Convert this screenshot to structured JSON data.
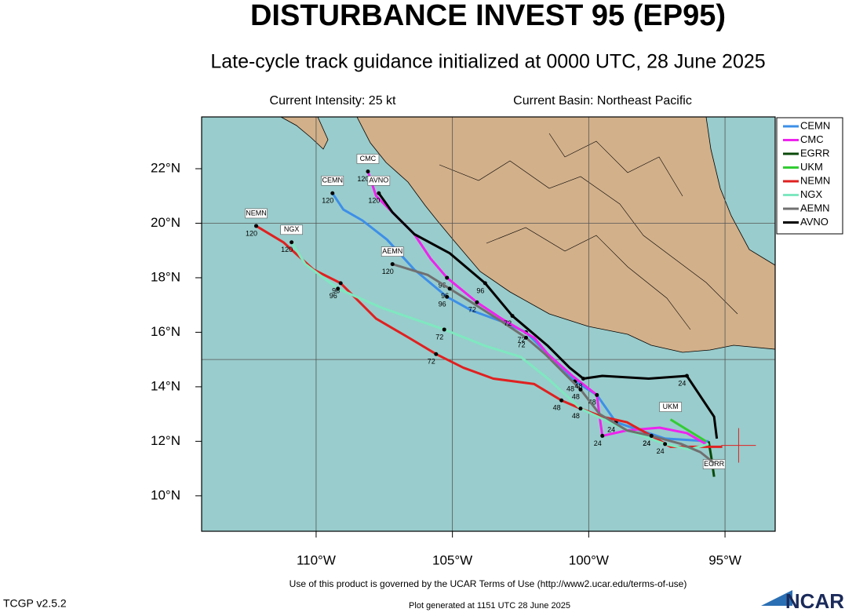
{
  "header": {
    "title": "DISTURBANCE INVEST 95 (EP95)",
    "subtitle": "Late-cycle track guidance initialized at 0000 UTC, 28 June 2025",
    "intensity": "Current Intensity: 25 kt",
    "basin": "Current Basin: Northeast Pacific"
  },
  "chart_data": {
    "type": "track",
    "xlim": [
      -114.2,
      -93.16
    ],
    "ylim": [
      8.7,
      23.9
    ],
    "xticks": [
      {
        "value": -110,
        "label": "110°W"
      },
      {
        "value": -105,
        "label": "105°W"
      },
      {
        "value": -100,
        "label": "100°W"
      },
      {
        "value": -95,
        "label": "95°W"
      }
    ],
    "yticks": [
      {
        "value": 10,
        "label": "10°N"
      },
      {
        "value": 12,
        "label": "12°N"
      },
      {
        "value": 14,
        "label": "14°N"
      },
      {
        "value": 16,
        "label": "16°N"
      },
      {
        "value": 18,
        "label": "18°N"
      },
      {
        "value": 20,
        "label": "20°N"
      },
      {
        "value": 22,
        "label": "22°N"
      }
    ],
    "grid_lon": [
      -110,
      -105,
      -100,
      -95
    ],
    "grid_lat": [
      15,
      20
    ],
    "current_position": {
      "x": -94.5,
      "y": 11.85,
      "color": "#e02020"
    },
    "series": [
      {
        "name": "CEMN",
        "color": "#3d8fe8",
        "x": [
          -95.6,
          -97.2,
          -99.0,
          -99.7,
          -100.5,
          -101.5,
          -102.3,
          -103.2,
          -104.3,
          -105.2,
          -106.4,
          -107.4,
          -108.3,
          -109.0,
          -109.4
        ],
        "values": [
          12.0,
          12.1,
          12.7,
          13.7,
          14.2,
          15.2,
          16.0,
          16.4,
          16.8,
          17.3,
          18.3,
          19.4,
          20.1,
          20.5,
          21.1
        ],
        "hours": [
          null,
          null,
          24,
          null,
          48,
          null,
          72,
          null,
          null,
          96,
          null,
          null,
          null,
          null,
          120
        ]
      },
      {
        "name": "CMC",
        "color": "#ee22ee",
        "x": [
          -95.7,
          -96.4,
          -97.4,
          -98.6,
          -99.5,
          -99.6,
          -99.7,
          -100.6,
          -101.5,
          -102.0,
          -103.2,
          -104.1,
          -105.2,
          -105.8,
          -106.4,
          -107.1,
          -107.8,
          -108.1
        ],
        "values": [
          11.9,
          12.3,
          12.5,
          12.4,
          12.2,
          12.9,
          13.7,
          14.4,
          15.2,
          15.8,
          16.5,
          17.1,
          18.0,
          18.7,
          19.6,
          20.3,
          21.0,
          21.9
        ],
        "hours": [
          null,
          null,
          null,
          null,
          24,
          null,
          48,
          null,
          null,
          null,
          null,
          72,
          96,
          null,
          null,
          null,
          null,
          120
        ]
      },
      {
        "name": "EGRR",
        "color": "#0a4a0a",
        "x": [
          -95.6,
          -95.5,
          -95.4
        ],
        "values": [
          12.0,
          11.4,
          10.7
        ],
        "hours": [
          null,
          null,
          null
        ]
      },
      {
        "name": "UKM",
        "color": "#33cc33",
        "x": [
          -95.7,
          -97.0
        ],
        "values": [
          12.0,
          12.8
        ],
        "hours": [
          null,
          null
        ]
      },
      {
        "name": "NEMN",
        "color": "#e02020",
        "x": [
          -95.1,
          -96.3,
          -97.0,
          -97.7,
          -98.6,
          -99.5,
          -100.3,
          -101.0,
          -102.0,
          -103.5,
          -104.6,
          -105.6,
          -106.6,
          -107.8,
          -109.1,
          -110.1,
          -111.2,
          -112.2
        ],
        "values": [
          11.8,
          11.8,
          11.8,
          12.2,
          12.7,
          12.9,
          13.2,
          13.5,
          14.1,
          14.3,
          14.7,
          15.2,
          15.8,
          16.5,
          17.8,
          18.3,
          19.3,
          19.9
        ],
        "hours": [
          null,
          null,
          null,
          24,
          null,
          null,
          null,
          48,
          null,
          null,
          null,
          72,
          null,
          null,
          96,
          null,
          null,
          120
        ]
      },
      {
        "name": "NGX",
        "color": "#7fe8c0",
        "x": [
          -95.6,
          -96.3,
          -97.2,
          -98.6,
          -100.3,
          -101.5,
          -102.5,
          -103.8,
          -105.3,
          -107.6,
          -109.2,
          -110.4,
          -110.9
        ],
        "values": [
          11.9,
          11.7,
          11.9,
          12.4,
          13.2,
          14.3,
          15.1,
          15.5,
          16.1,
          16.9,
          17.6,
          18.5,
          19.3
        ],
        "hours": [
          null,
          null,
          24,
          null,
          48,
          null,
          null,
          null,
          72,
          null,
          96,
          null,
          120
        ]
      },
      {
        "name": "AEMN",
        "color": "#707070",
        "x": [
          -95.4,
          -95.9,
          -96.6,
          -97.7,
          -98.6,
          -99.6,
          -100.3,
          -100.9,
          -101.6,
          -102.3,
          -103.2,
          -104.3,
          -105.1,
          -105.9,
          -107.2
        ],
        "values": [
          11.2,
          11.6,
          11.9,
          12.2,
          12.4,
          13.0,
          13.9,
          14.5,
          15.2,
          15.8,
          16.4,
          17.1,
          17.6,
          18.1,
          18.5
        ],
        "hours": [
          null,
          null,
          null,
          24,
          null,
          null,
          48,
          null,
          null,
          72,
          null,
          null,
          96,
          null,
          120
        ]
      },
      {
        "name": "AVNO",
        "color": "#000000",
        "x": [
          -95.3,
          -95.4,
          -96.4,
          -97.8,
          -99.5,
          -100.2,
          -100.7,
          -101.5,
          -102.8,
          -103.8,
          -105.1,
          -106.4,
          -107.2,
          -107.7
        ],
        "values": [
          12.1,
          12.9,
          14.4,
          14.3,
          14.4,
          14.3,
          14.7,
          15.5,
          16.6,
          17.8,
          18.9,
          19.6,
          20.4,
          21.1
        ],
        "hours": [
          null,
          null,
          24,
          null,
          null,
          48,
          null,
          null,
          72,
          96,
          null,
          null,
          null,
          120
        ]
      }
    ]
  },
  "footer": {
    "terms": "Use of this product is governed by the UCAR Terms of Use (http://www2.ucar.edu/terms-of-use)",
    "version": "TCGP v2.5.2",
    "generated": "Plot generated at 1151 UTC  28 June 2025",
    "logo": "NCAR"
  }
}
